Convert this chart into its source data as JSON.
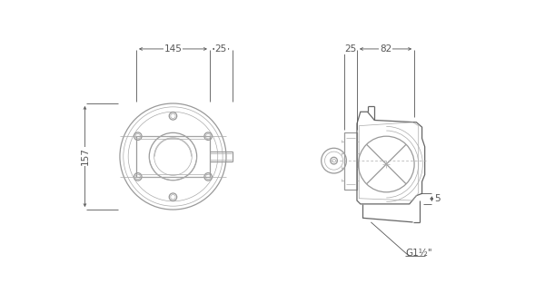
{
  "bg_color": "#ffffff",
  "line_color": "#aaaaaa",
  "line_color2": "#999999",
  "dark_line": "#666666",
  "dim_color": "#555555",
  "dim_145_text": "145",
  "dim_25_top_text": "25",
  "dim_157_text": "157",
  "dim_25_side_text": "25",
  "dim_82_text": "82",
  "dim_5_text": "5",
  "dim_g_text": "G1½\"",
  "lw_main": 0.9,
  "lw_dim": 0.6,
  "lw_light": 0.5
}
